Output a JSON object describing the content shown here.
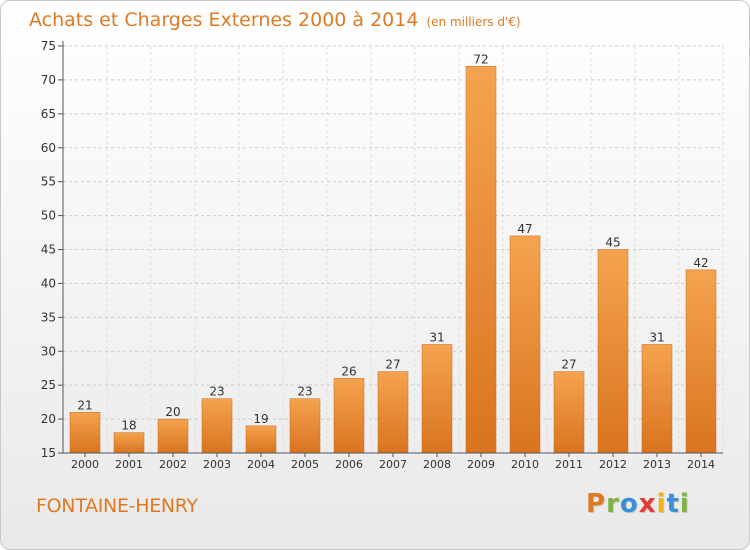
{
  "header": {
    "title": "Achats et Charges Externes 2000 à 2014",
    "subtitle": "(en milliers d'€)"
  },
  "footer": {
    "commune": "FONTAINE-HENRY",
    "logo": "Proxiti"
  },
  "colors": {
    "accent": "#e07a22",
    "bar_top": "#f5a350",
    "bar_bottom": "#d9741f",
    "logo_letters": [
      "#e07a22",
      "#7cb342",
      "#3a8fd6",
      "#e53935",
      "#f2b21c",
      "#3a8fd6",
      "#7cb342"
    ]
  },
  "chart_data": {
    "type": "bar",
    "title": "Achats et Charges Externes 2000 à 2014",
    "subtitle": "(en milliers d'€)",
    "categories": [
      "2000",
      "2001",
      "2002",
      "2003",
      "2004",
      "2005",
      "2006",
      "2007",
      "2008",
      "2009",
      "2010",
      "2011",
      "2012",
      "2013",
      "2014"
    ],
    "values": [
      21,
      18,
      20,
      23,
      19,
      23,
      26,
      27,
      31,
      72,
      47,
      27,
      45,
      31,
      42
    ],
    "ylim": [
      15,
      75
    ],
    "yticks": [
      15,
      20,
      25,
      30,
      35,
      40,
      45,
      50,
      55,
      60,
      65,
      70,
      75
    ],
    "grid": true,
    "legend": "none"
  }
}
